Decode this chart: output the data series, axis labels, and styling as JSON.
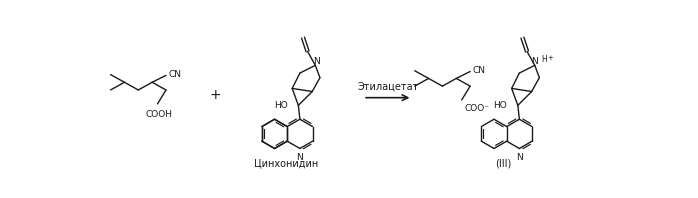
{
  "background_color": "#ffffff",
  "figsize": [
    6.98,
    1.98
  ],
  "dpi": 100,
  "arrow_label": "Этилацетат",
  "label_cinchonidine": "Цинхонидин",
  "label_product": "(III)",
  "line_color": "#1a1a1a",
  "line_width": 1.0,
  "font_size_label": 7.0,
  "font_size_text": 7.0,
  "font_size_chem": 6.5,
  "font_size_plus": 10
}
